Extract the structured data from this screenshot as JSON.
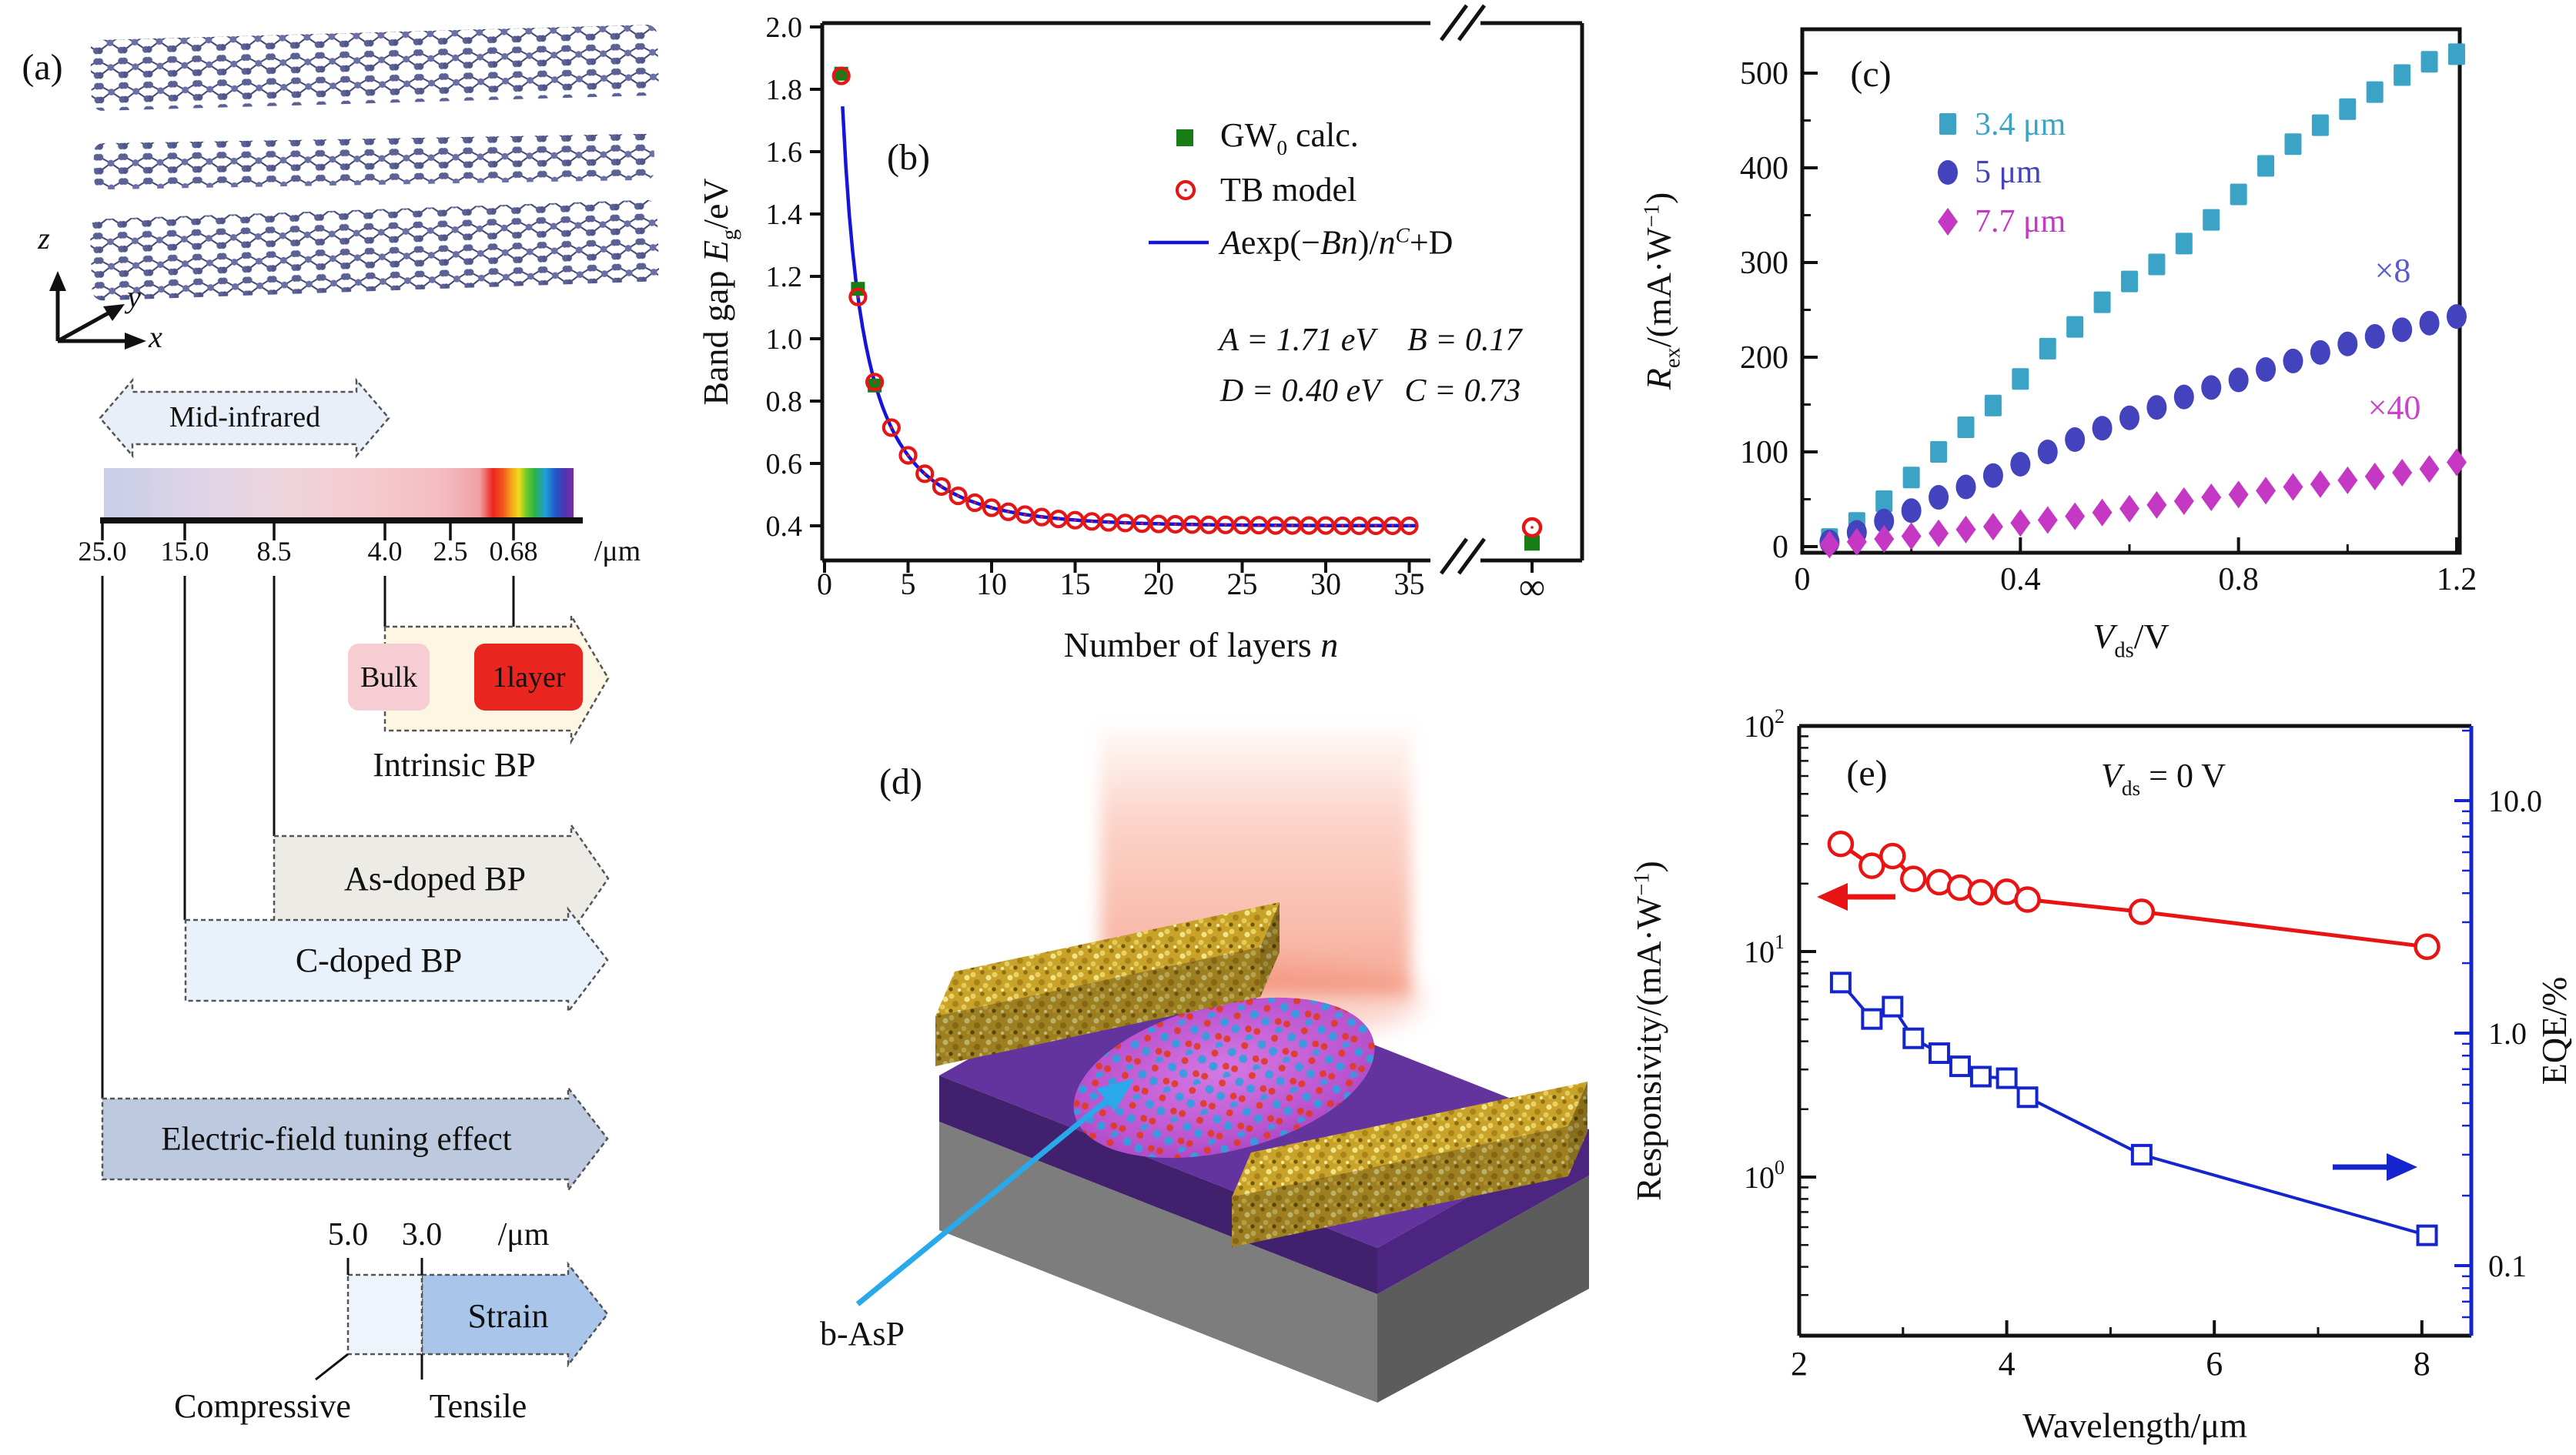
{
  "colors": {
    "gw0_green": "#177d17",
    "tb_red": "#e51616",
    "fit_blue": "#1414dd",
    "teal": "#3ba4c6",
    "indigo": "#4343bd",
    "magenta": "#c438c4",
    "x8_blue": "#5b5bce",
    "x40_magenta": "#cb42cb",
    "resp_red": "#e81414",
    "eqe_blue": "#1525cd",
    "one_layer_red": "#e8251e",
    "bulk_pink": "#f5cdd3",
    "basp_arrow_cyan": "#29a9e9"
  },
  "panel_a": {
    "label": "(a)",
    "axis_z": "z",
    "axis_y": "y",
    "axis_x": "x",
    "mid_infrared": "Mid-infrared",
    "spectrum_ticks": [
      "25.0",
      "15.0",
      "8.5",
      "4.0",
      "2.5",
      "0.68"
    ],
    "spectrum_unit": "/μm",
    "bulk": "Bulk",
    "one_layer": "1layer",
    "intrinsic": "Intrinsic BP",
    "as_doped": "As-doped BP",
    "c_doped": "C-doped BP",
    "efield": "Electric-field tuning effect",
    "strain": "Strain",
    "strain_tick_1": "5.0",
    "strain_tick_2": "3.0",
    "strain_unit": "/μm",
    "compressive": "Compressive",
    "tensile": "Tensile"
  },
  "panel_b": {
    "label": "(b)",
    "ylabel": [
      [
        "Band gap ",
        "p"
      ],
      [
        "E",
        "i"
      ],
      [
        "g",
        "s"
      ],
      [
        "/eV",
        "p"
      ]
    ],
    "xlabel": [
      [
        "Number of layers ",
        "p"
      ],
      [
        "n",
        "i"
      ]
    ],
    "legend_gw0": [
      [
        "GW",
        "p"
      ],
      [
        "0",
        "s"
      ],
      [
        " calc.",
        "p"
      ]
    ],
    "legend_tb": [
      [
        "TB model",
        "p"
      ]
    ],
    "legend_fit": [
      [
        "A",
        "i"
      ],
      [
        "exp(−",
        "p"
      ],
      [
        "Bn",
        "i"
      ],
      [
        ")/",
        "p"
      ],
      [
        "n",
        "i"
      ],
      [
        "C",
        "ui"
      ],
      [
        "+D",
        "p"
      ]
    ],
    "param_line1": [
      [
        "A",
        "i"
      ],
      [
        " = 1.71 eV    ",
        "p"
      ],
      [
        "B",
        "i"
      ],
      [
        " = 0.17",
        "p"
      ]
    ],
    "param_line2": [
      [
        "D",
        "i"
      ],
      [
        " = 0.40 eV   ",
        "p"
      ],
      [
        "C",
        "i"
      ],
      [
        " = 0.73",
        "p"
      ]
    ],
    "infinity": "∞"
  },
  "panel_c": {
    "label": "(c)",
    "ylabel": [
      [
        "R",
        "i"
      ],
      [
        "ex",
        "s"
      ],
      [
        "/(mA·W",
        "p"
      ],
      [
        "−1",
        "u"
      ],
      [
        ")",
        "p"
      ]
    ],
    "xlabel": [
      [
        "V",
        "i"
      ],
      [
        "ds",
        "s"
      ],
      [
        "/V",
        "p"
      ]
    ],
    "legend": [
      "3.4 μm",
      "5 μm",
      "7.7 μm"
    ],
    "times8": "×8",
    "times40": "×40"
  },
  "panel_d": {
    "label": "(d)",
    "annotation": "b-AsP"
  },
  "panel_e": {
    "label": "(e)",
    "annotation": [
      [
        "V",
        "i"
      ],
      [
        "ds",
        "s"
      ],
      [
        " = 0 V",
        "p"
      ]
    ],
    "left_ylabel": [
      [
        "Responsivity/(mA·W",
        "p"
      ],
      [
        "−1",
        "u"
      ],
      [
        ")",
        "p"
      ]
    ],
    "right_ylabel": [
      [
        "EQE/%",
        "p"
      ]
    ],
    "xlabel": [
      [
        "Wavelength/μm",
        "p"
      ]
    ]
  },
  "chart_data": [
    {
      "id": "b",
      "type": "scatter",
      "title": "Band gap vs number of layers",
      "xlabel": "Number of layers n",
      "ylabel": "Band gap Eg/eV",
      "xlim": [
        0,
        36
      ],
      "ylim": [
        0.29,
        2.0
      ],
      "x_ticks": [
        0,
        5,
        10,
        15,
        20,
        25,
        30,
        35
      ],
      "y_ticks": [
        "2.0",
        "1.8",
        "1.6",
        "1.4",
        "1.2",
        "1.0",
        "0.8",
        "0.6",
        "0.4"
      ],
      "fit_params": {
        "A": 1.71,
        "B": 0.17,
        "C": 0.73,
        "D": 0.4
      },
      "series": [
        {
          "name": "GW0 calc.",
          "marker": "square",
          "x": [
            1,
            2,
            3
          ],
          "y": [
            1.85,
            1.16,
            0.85
          ],
          "infinity_value": 0.345
        },
        {
          "name": "TB model",
          "marker": "open-circle",
          "x": [
            1,
            2,
            3,
            4,
            5,
            6,
            7,
            8,
            9,
            10,
            11,
            12,
            13,
            14,
            15,
            16,
            17,
            18,
            19,
            20,
            21,
            22,
            23,
            24,
            25,
            26,
            27,
            28,
            29,
            30,
            31,
            32,
            33,
            34,
            35
          ],
          "y": [
            1.843,
            1.134,
            0.861,
            0.715,
            0.626,
            0.567,
            0.526,
            0.496,
            0.474,
            0.458,
            0.445,
            0.436,
            0.428,
            0.422,
            0.418,
            0.414,
            0.411,
            0.409,
            0.407,
            0.406,
            0.405,
            0.404,
            0.403,
            0.403,
            0.402,
            0.402,
            0.401,
            0.401,
            0.401,
            0.401,
            0.4,
            0.4,
            0.4,
            0.4,
            0.4
          ],
          "infinity_value": 0.395
        },
        {
          "name": "A exp(-Bn)/n^C + D",
          "marker": "line",
          "x": [],
          "y": []
        }
      ]
    },
    {
      "id": "c",
      "type": "scatter",
      "title": "Responsivity vs bias",
      "xlabel": "Vds/V",
      "ylabel": "Rex/(mA W-1)",
      "xlim": [
        0,
        1.25
      ],
      "ylim": [
        0,
        545
      ],
      "x_ticks": [
        0,
        0.4,
        0.8,
        1.2
      ],
      "x_minor_ticks": [
        0.2,
        0.6,
        1.0
      ],
      "y_ticks": [
        0,
        100,
        200,
        300,
        400,
        500
      ],
      "y_minor_ticks": [
        50,
        150,
        250,
        350,
        450
      ],
      "x": [
        0.05,
        0.1,
        0.15,
        0.2,
        0.25,
        0.3,
        0.35,
        0.4,
        0.45,
        0.5,
        0.55,
        0.6,
        0.65,
        0.7,
        0.75,
        0.8,
        0.85,
        0.9,
        0.95,
        1.0,
        1.05,
        1.1,
        1.15,
        1.2
      ],
      "series": [
        {
          "name": "3.4 um",
          "marker": "square",
          "scale_note": "",
          "values": [
            8,
            25,
            48,
            73,
            100,
            126,
            149,
            177,
            209,
            232,
            258,
            280,
            298,
            320,
            345,
            372,
            402,
            425,
            445,
            462,
            480,
            498,
            512,
            520
          ]
        },
        {
          "name": "5 um",
          "marker": "circle",
          "scale_note": "×8",
          "values": [
            5,
            15,
            27,
            38,
            52,
            63,
            75,
            87,
            100,
            113,
            125,
            136,
            147,
            158,
            168,
            176,
            187,
            196,
            205,
            214,
            222,
            229,
            236,
            243
          ]
        },
        {
          "name": "7.7 um",
          "marker": "diamond",
          "scale_note": "×40",
          "values": [
            2,
            5,
            8,
            11,
            14,
            18,
            21,
            25,
            28,
            32,
            36,
            40,
            44,
            48,
            52,
            55,
            59,
            63,
            66,
            70,
            74,
            78,
            82,
            89
          ]
        }
      ]
    },
    {
      "id": "e",
      "type": "line",
      "title": "Responsivity and EQE vs wavelength at Vds = 0 V",
      "xlabel": "Wavelength/um",
      "left_ylabel": "Responsivity/(mA W-1), log scale",
      "right_ylabel": "EQE/%, log scale",
      "xlim": [
        2,
        8.5
      ],
      "left_ylim_log": [
        0.29,
        100
      ],
      "right_ylim_log": [
        0.049,
        21
      ],
      "x_ticks": [
        2,
        4,
        6,
        8
      ],
      "x_minor_ticks": [
        3,
        5,
        7
      ],
      "left_y_ticks": [
        {
          "base": "10",
          "exp": "2",
          "v": 100
        },
        {
          "base": "10",
          "exp": "1",
          "v": 10
        },
        {
          "base": "10",
          "exp": "0",
          "v": 1
        }
      ],
      "right_y_ticks": [
        {
          "t": "10.0",
          "v": 10
        },
        {
          "t": "1.0",
          "v": 1
        },
        {
          "t": "0.1",
          "v": 0.1
        }
      ],
      "x": [
        2.4,
        2.7,
        2.9,
        3.1,
        3.35,
        3.55,
        3.75,
        4.0,
        4.2,
        5.3,
        8.05
      ],
      "series": [
        {
          "name": "Responsivity",
          "axis": "left",
          "marker": "open-circle",
          "values": [
            30,
            24,
            26.5,
            21,
            20.3,
            19.2,
            18.3,
            18.4,
            17,
            15,
            10.5
          ]
        },
        {
          "name": "EQE",
          "axis": "right",
          "marker": "open-square",
          "values": [
            1.65,
            1.15,
            1.3,
            0.95,
            0.82,
            0.72,
            0.65,
            0.64,
            0.53,
            0.3,
            0.135
          ]
        }
      ]
    }
  ]
}
